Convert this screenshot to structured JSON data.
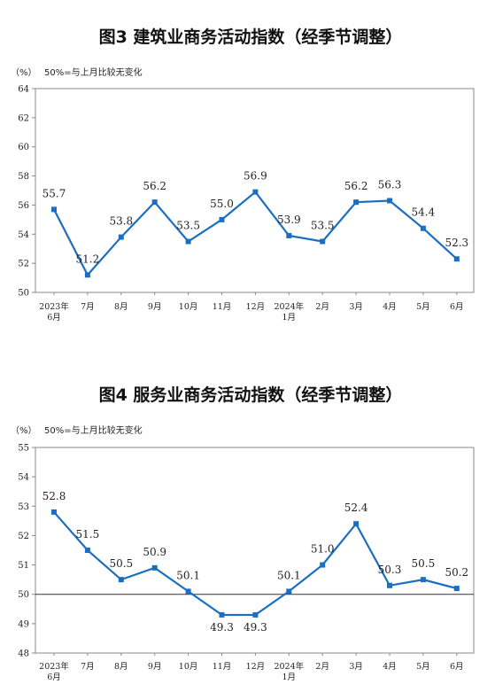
{
  "chart_data": [
    {
      "type": "line",
      "title": "图3  建筑业商务活动指数（经季节调整）",
      "unit_label": "（%）",
      "note": "50%=与上月比较无变化",
      "categories": [
        [
          "2023年",
          "6月"
        ],
        [
          "7月"
        ],
        [
          "8月"
        ],
        [
          "9月"
        ],
        [
          "10月"
        ],
        [
          "11月"
        ],
        [
          "12月"
        ],
        [
          "2024年",
          "1月"
        ],
        [
          "2月"
        ],
        [
          "3月"
        ],
        [
          "4月"
        ],
        [
          "5月"
        ],
        [
          "6月"
        ]
      ],
      "values": [
        55.7,
        51.2,
        53.8,
        56.2,
        53.5,
        55.0,
        56.9,
        53.9,
        53.5,
        56.2,
        56.3,
        54.4,
        52.3
      ],
      "data_labels": [
        "55.7",
        "51.2",
        "53.8",
        "56.2",
        "53.5",
        "55.0",
        "56.9",
        "53.9",
        "53.5",
        "56.2",
        "56.3",
        "54.4",
        "52.3"
      ],
      "ylim": [
        50,
        64
      ],
      "yticks": [
        "50",
        "52",
        "54",
        "56",
        "58",
        "60",
        "62",
        "64"
      ],
      "color": "#1a6fc2",
      "grid": false
    },
    {
      "type": "line",
      "title": "图4  服务业商务活动指数（经季节调整）",
      "unit_label": "（%）",
      "note": "50%=与上月比较无变化",
      "categories": [
        [
          "2023年",
          "6月"
        ],
        [
          "7月"
        ],
        [
          "8月"
        ],
        [
          "9月"
        ],
        [
          "10月"
        ],
        [
          "11月"
        ],
        [
          "12月"
        ],
        [
          "2024年",
          "1月"
        ],
        [
          "2月"
        ],
        [
          "3月"
        ],
        [
          "4月"
        ],
        [
          "5月"
        ],
        [
          "6月"
        ]
      ],
      "values": [
        52.8,
        51.5,
        50.5,
        50.9,
        50.1,
        49.3,
        49.3,
        50.1,
        51.0,
        52.4,
        50.3,
        50.5,
        50.2
      ],
      "data_labels": [
        "52.8",
        "51.5",
        "50.5",
        "50.9",
        "50.1",
        "49.3",
        "49.3",
        "50.1",
        "51.0",
        "52.4",
        "50.3",
        "50.5",
        "50.2"
      ],
      "ylim": [
        48,
        55
      ],
      "yticks": [
        "48",
        "49",
        "50",
        "51",
        "52",
        "53",
        "54",
        "55"
      ],
      "reference_line": 50,
      "color": "#1a6fc2",
      "grid": false
    }
  ]
}
